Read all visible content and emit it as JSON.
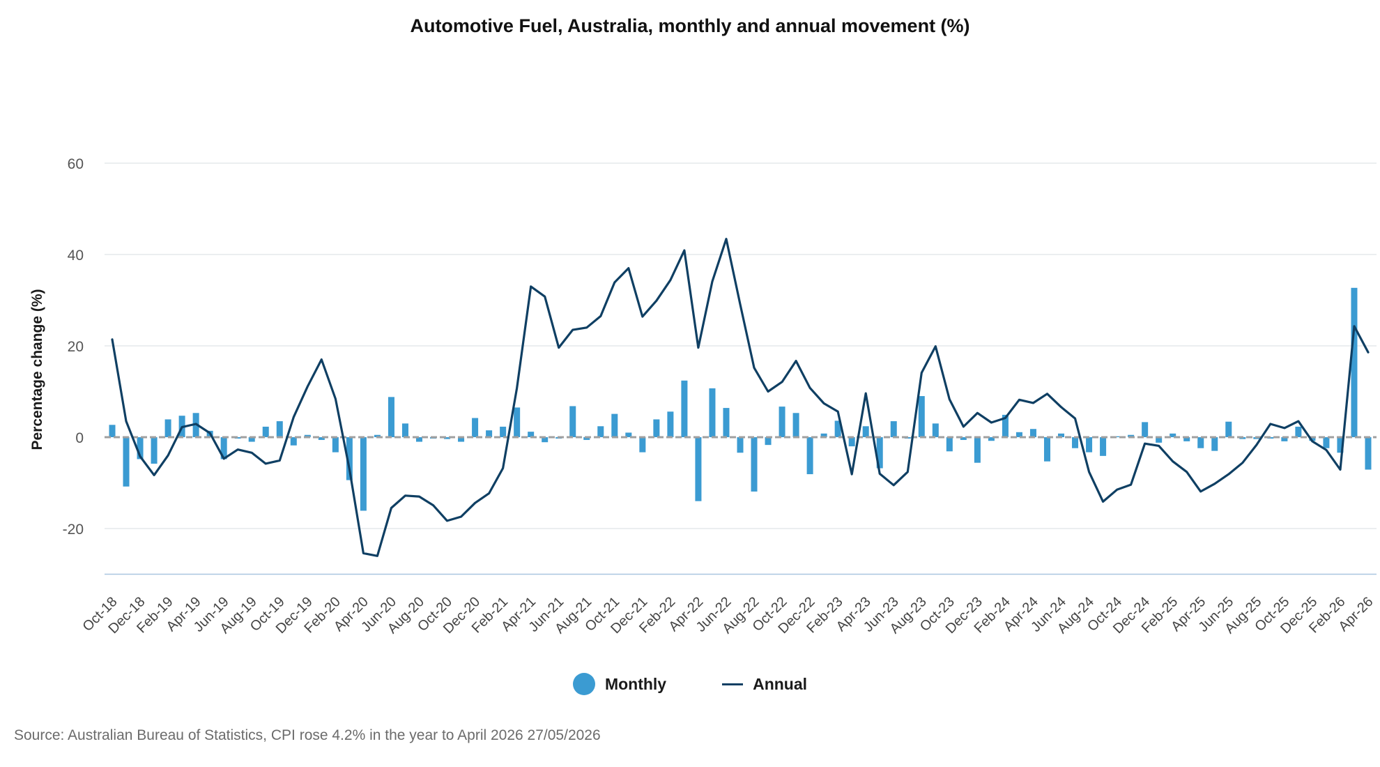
{
  "chart_data": {
    "type": "bar+line",
    "title": "Automotive Fuel, Australia, monthly and annual movement (%)",
    "ylabel": "Percentage change (%)",
    "xlabel": "",
    "ylim": [
      -30,
      60
    ],
    "yticks": [
      60,
      40,
      20,
      0,
      -20
    ],
    "grid": true,
    "legend_position": "bottom",
    "colors": {
      "monthly": "#3b9bd2",
      "annual": "#0f3f63",
      "zero_line": "#a0a0a0",
      "grid": "#dfe3e8",
      "axis": "#a9c6df"
    },
    "x_tick_labels": [
      "Oct-18",
      "Dec-18",
      "Feb-19",
      "Apr-19",
      "Jun-19",
      "Aug-19",
      "Oct-19",
      "Dec-19",
      "Feb-20",
      "Apr-20",
      "Jun-20",
      "Aug-20",
      "Oct-20",
      "Dec-20",
      "Feb-21",
      "Apr-21",
      "Jun-21",
      "Aug-21",
      "Oct-21",
      "Dec-21",
      "Feb-22",
      "Apr-22",
      "Jun-22",
      "Aug-22",
      "Oct-22",
      "Dec-22",
      "Feb-23",
      "Apr-23",
      "Jun-23",
      "Aug-23",
      "Oct-23",
      "Dec-23",
      "Feb-24",
      "Apr-24",
      "Jun-24",
      "Aug-24",
      "Oct-24",
      "Dec-24",
      "Feb-25",
      "Apr-25",
      "Jun-25",
      "Aug-25",
      "Oct-25",
      "Dec-25",
      "Feb-26",
      "Apr-26"
    ],
    "categories": [
      "Oct-18",
      "Nov-18",
      "Dec-18",
      "Jan-19",
      "Feb-19",
      "Mar-19",
      "Apr-19",
      "May-19",
      "Jun-19",
      "Jul-19",
      "Aug-19",
      "Sep-19",
      "Oct-19",
      "Nov-19",
      "Dec-19",
      "Jan-20",
      "Feb-20",
      "Mar-20",
      "Apr-20",
      "May-20",
      "Jun-20",
      "Jul-20",
      "Aug-20",
      "Sep-20",
      "Oct-20",
      "Nov-20",
      "Dec-20",
      "Jan-21",
      "Feb-21",
      "Mar-21",
      "Apr-21",
      "May-21",
      "Jun-21",
      "Jul-21",
      "Aug-21",
      "Sep-21",
      "Oct-21",
      "Nov-21",
      "Dec-21",
      "Jan-22",
      "Feb-22",
      "Mar-22",
      "Apr-22",
      "May-22",
      "Jun-22",
      "Jul-22",
      "Aug-22",
      "Sep-22",
      "Oct-22",
      "Nov-22",
      "Dec-22",
      "Jan-23",
      "Feb-23",
      "Mar-23",
      "Apr-23",
      "May-23",
      "Jun-23",
      "Jul-23",
      "Aug-23",
      "Sep-23",
      "Oct-23",
      "Nov-23",
      "Dec-23",
      "Jan-24",
      "Feb-24",
      "Mar-24",
      "Apr-24",
      "May-24",
      "Jun-24",
      "Jul-24",
      "Aug-24",
      "Sep-24",
      "Oct-24",
      "Nov-24",
      "Dec-24",
      "Jan-25",
      "Feb-25",
      "Mar-25",
      "Apr-25",
      "May-25",
      "Jun-25",
      "Jul-25",
      "Aug-25",
      "Sep-25",
      "Oct-25",
      "Nov-25",
      "Dec-25",
      "Jan-26",
      "Feb-26",
      "Mar-26",
      "Apr-26"
    ],
    "series": [
      {
        "name": "Monthly",
        "type": "bar",
        "values": [
          2.7,
          -10.8,
          -4.8,
          -5.8,
          3.9,
          4.7,
          5.3,
          1.4,
          -4.8,
          -0.3,
          -1.0,
          2.3,
          3.5,
          -1.8,
          0.5,
          -0.6,
          -3.3,
          -9.4,
          -16.1,
          0.5,
          8.8,
          3.0,
          -1.0,
          -0.3,
          -0.4,
          -1.0,
          4.2,
          1.5,
          2.3,
          6.5,
          1.2,
          -1.1,
          -0.3,
          6.8,
          -0.6,
          2.4,
          5.1,
          1.0,
          -3.3,
          3.9,
          5.6,
          12.4,
          -14.0,
          10.7,
          6.4,
          -3.4,
          -11.9,
          -1.7,
          6.7,
          5.3,
          -8.1,
          0.8,
          3.6,
          -2.0,
          2.4,
          -6.8,
          3.5,
          -0.3,
          9.0,
          3.0,
          -3.1,
          -0.6,
          -5.6,
          -0.8,
          4.9,
          1.1,
          1.8,
          -5.3,
          0.8,
          -2.4,
          -3.3,
          -4.1,
          0.2,
          0.5,
          3.3,
          -1.2,
          0.8,
          -0.9,
          -2.4,
          -3.0,
          3.4,
          -0.4,
          -0.4,
          -0.3,
          -0.9,
          2.3,
          -0.8,
          -2.4,
          -3.4,
          32.7,
          -7.1
        ]
      },
      {
        "name": "Annual",
        "type": "line",
        "values": [
          21.4,
          3.5,
          -4.2,
          -8.3,
          -4.0,
          2.2,
          2.9,
          0.9,
          -4.7,
          -2.7,
          -3.4,
          -5.8,
          -5.1,
          4.4,
          11.1,
          17.0,
          8.4,
          -7.0,
          -25.4,
          -26.0,
          -15.5,
          -12.8,
          -13.0,
          -14.9,
          -18.3,
          -17.4,
          -14.4,
          -12.3,
          -6.8,
          10.7,
          33.0,
          30.8,
          19.6,
          23.5,
          24.0,
          26.5,
          33.9,
          37.0,
          26.4,
          29.9,
          34.4,
          40.9,
          19.6,
          34.1,
          43.4,
          29.1,
          15.2,
          10.0,
          12.1,
          16.7,
          10.8,
          7.4,
          5.6,
          -8.1,
          9.6,
          -8.0,
          -10.5,
          -7.6,
          14.1,
          19.9,
          8.3,
          2.3,
          5.3,
          3.2,
          4.2,
          8.2,
          7.5,
          9.5,
          6.6,
          4.1,
          -7.6,
          -14.1,
          -11.5,
          -10.4,
          -1.4,
          -1.9,
          -5.3,
          -7.6,
          -11.9,
          -10.2,
          -8.1,
          -5.6,
          -1.7,
          2.9,
          2.0,
          3.5,
          -0.9,
          -2.8,
          -7.1,
          24.3,
          18.6
        ]
      }
    ]
  },
  "legend": {
    "monthly_label": "Monthly",
    "annual_label": "Annual"
  },
  "source_note": "Source: Australian Bureau of Statistics, CPI rose 4.2% in the year to April 2026 27/05/2026"
}
